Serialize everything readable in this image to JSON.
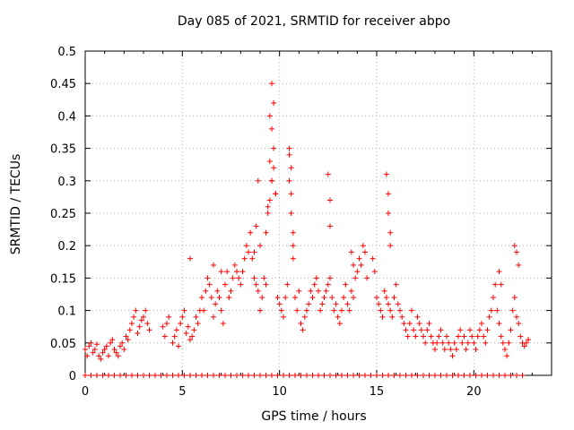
{
  "chart_data": {
    "type": "scatter",
    "title": "Day 085 of 2021, SRMTID for receiver abpo",
    "xlabel": "GPS time / hours",
    "ylabel": "SRMTID / TECUs",
    "xlim": [
      0,
      24
    ],
    "ylim": [
      0,
      0.5
    ],
    "xticks": [
      0,
      5,
      10,
      15,
      20
    ],
    "xtick_labels": [
      "0",
      "5",
      "10",
      "15",
      "20"
    ],
    "yticks": [
      0,
      0.05,
      0.1,
      0.15,
      0.2,
      0.25,
      0.3,
      0.35,
      0.4,
      0.45,
      0.5
    ],
    "ytick_labels": [
      "0",
      "0.05",
      "0.1",
      "0.15",
      "0.2",
      "0.25",
      "0.3",
      "0.35",
      "0.4",
      "0.45",
      "0.5"
    ],
    "grid": true,
    "marker_color": "#ff0000",
    "series": [
      {
        "name": "SRMTID",
        "marker": "plus",
        "x": [
          0.0,
          0.1,
          0.2,
          0.3,
          0.4,
          0.5,
          0.6,
          0.7,
          0.8,
          0.9,
          1.0,
          1.1,
          1.2,
          1.3,
          1.4,
          1.5,
          1.6,
          1.7,
          1.8,
          1.9,
          2.0,
          2.1,
          2.2,
          2.3,
          2.4,
          2.5,
          2.6,
          2.7,
          2.8,
          2.9,
          3.0,
          3.1,
          3.2,
          3.3,
          4.0,
          4.1,
          4.2,
          4.3,
          4.5,
          4.6,
          4.7,
          4.8,
          4.9,
          5.0,
          5.1,
          5.2,
          5.3,
          5.4,
          5.5,
          5.6,
          5.7,
          5.8,
          5.9,
          6.0,
          6.1,
          6.2,
          6.3,
          6.4,
          6.5,
          6.6,
          6.7,
          6.8,
          6.9,
          7.0,
          7.1,
          7.2,
          7.3,
          7.4,
          7.5,
          7.6,
          7.7,
          7.8,
          7.9,
          8.0,
          8.1,
          8.2,
          8.3,
          8.4,
          8.5,
          8.6,
          8.7,
          8.8,
          8.9,
          9.0,
          9.1,
          9.2,
          9.3,
          9.4,
          9.5,
          9.6,
          9.7,
          9.8,
          9.9,
          10.0,
          10.1,
          10.2,
          10.3,
          10.4,
          10.5,
          10.6,
          10.7,
          10.8,
          10.9,
          11.0,
          11.1,
          11.2,
          11.3,
          11.4,
          11.5,
          11.6,
          11.7,
          11.8,
          11.9,
          12.0,
          12.1,
          12.2,
          12.3,
          12.4,
          12.5,
          12.6,
          12.7,
          12.8,
          12.9,
          13.0,
          13.1,
          13.2,
          13.3,
          13.4,
          13.5,
          13.6,
          13.7,
          13.8,
          13.9,
          14.0,
          14.1,
          14.2,
          14.3,
          14.4,
          14.5,
          15.0,
          15.1,
          15.2,
          15.3,
          15.4,
          15.5,
          15.6,
          15.7,
          15.8,
          15.9,
          16.0,
          16.1,
          16.2,
          16.3,
          16.4,
          16.5,
          16.6,
          16.7,
          16.8,
          16.9,
          17.0,
          17.1,
          17.2,
          17.3,
          17.4,
          17.5,
          17.6,
          17.7,
          17.8,
          17.9,
          18.0,
          18.1,
          18.2,
          18.3,
          18.4,
          18.5,
          18.6,
          18.7,
          18.8,
          18.9,
          19.0,
          19.1,
          19.2,
          19.3,
          19.4,
          19.5,
          19.6,
          19.7,
          19.8,
          19.9,
          20.0,
          20.1,
          20.2,
          20.3,
          20.4,
          20.5,
          20.6,
          20.7,
          20.8,
          20.9,
          21.0,
          21.1,
          21.2,
          21.3,
          21.4,
          21.5,
          21.6,
          21.7,
          21.8,
          21.9,
          22.0,
          22.1,
          22.2,
          22.3,
          22.4,
          22.5,
          22.6,
          22.7,
          22.8,
          0.0,
          0.3,
          0.6,
          0.9,
          1.2,
          1.5,
          1.8,
          2.1,
          2.4,
          2.7,
          3.0,
          3.3,
          3.6,
          3.9,
          4.2,
          4.5,
          4.8,
          5.1,
          5.4,
          5.7,
          6.0,
          6.3,
          6.6,
          6.9,
          7.2,
          7.5,
          7.8,
          8.1,
          8.4,
          8.7,
          9.0,
          9.3,
          9.6,
          9.9,
          10.2,
          10.5,
          10.8,
          11.1,
          11.4,
          11.7,
          12.0,
          12.3,
          12.6,
          12.9,
          13.2,
          13.5,
          13.8,
          14.1,
          14.4,
          14.7,
          15.0,
          15.3,
          15.6,
          15.9,
          16.2,
          16.5,
          16.8,
          17.1,
          17.4,
          17.7,
          18.0,
          18.3,
          18.6,
          18.9,
          19.2,
          19.5,
          19.8,
          20.1,
          20.4,
          20.7,
          21.0,
          21.3,
          21.6,
          21.9,
          22.2,
          22.5,
          9.3,
          9.4,
          9.5,
          9.5,
          9.6,
          9.6,
          9.6,
          9.7,
          9.7,
          9.8,
          8.7,
          8.8,
          8.9,
          9.0,
          10.5,
          10.5,
          10.6,
          10.6,
          10.7,
          10.7,
          12.5,
          12.6,
          12.6,
          15.5,
          15.6,
          15.6,
          15.7,
          15.7,
          13.7,
          13.8,
          14.8,
          14.9,
          21.3,
          21.4,
          22.1,
          22.2,
          22.3,
          5.4,
          6.6,
          7.0
        ],
        "y": [
          0.04,
          0.03,
          0.045,
          0.05,
          0.035,
          0.04,
          0.048,
          0.03,
          0.025,
          0.035,
          0.04,
          0.045,
          0.03,
          0.05,
          0.055,
          0.04,
          0.035,
          0.03,
          0.045,
          0.05,
          0.04,
          0.06,
          0.055,
          0.07,
          0.08,
          0.09,
          0.1,
          0.065,
          0.075,
          0.085,
          0.09,
          0.1,
          0.08,
          0.07,
          0.075,
          0.06,
          0.08,
          0.09,
          0.05,
          0.06,
          0.07,
          0.045,
          0.08,
          0.09,
          0.1,
          0.065,
          0.075,
          0.055,
          0.06,
          0.07,
          0.09,
          0.08,
          0.1,
          0.12,
          0.1,
          0.13,
          0.15,
          0.14,
          0.12,
          0.09,
          0.11,
          0.13,
          0.12,
          0.1,
          0.08,
          0.14,
          0.16,
          0.12,
          0.13,
          0.15,
          0.17,
          0.16,
          0.15,
          0.14,
          0.16,
          0.18,
          0.2,
          0.19,
          0.22,
          0.18,
          0.15,
          0.14,
          0.13,
          0.1,
          0.12,
          0.15,
          0.14,
          0.25,
          0.27,
          0.3,
          0.32,
          0.28,
          0.12,
          0.11,
          0.1,
          0.09,
          0.12,
          0.14,
          0.3,
          0.25,
          0.2,
          0.12,
          0.1,
          0.13,
          0.08,
          0.07,
          0.09,
          0.1,
          0.11,
          0.13,
          0.12,
          0.14,
          0.15,
          0.13,
          0.1,
          0.11,
          0.12,
          0.13,
          0.14,
          0.15,
          0.12,
          0.1,
          0.11,
          0.09,
          0.08,
          0.1,
          0.12,
          0.14,
          0.11,
          0.1,
          0.13,
          0.12,
          0.15,
          0.16,
          0.18,
          0.17,
          0.2,
          0.19,
          0.15,
          0.12,
          0.11,
          0.1,
          0.09,
          0.13,
          0.12,
          0.11,
          0.1,
          0.09,
          0.12,
          0.14,
          0.11,
          0.1,
          0.09,
          0.08,
          0.07,
          0.06,
          0.08,
          0.1,
          0.07,
          0.06,
          0.09,
          0.08,
          0.07,
          0.06,
          0.05,
          0.07,
          0.08,
          0.06,
          0.05,
          0.04,
          0.05,
          0.06,
          0.07,
          0.05,
          0.04,
          0.06,
          0.05,
          0.04,
          0.03,
          0.05,
          0.04,
          0.06,
          0.07,
          0.05,
          0.06,
          0.04,
          0.05,
          0.07,
          0.06,
          0.05,
          0.04,
          0.06,
          0.07,
          0.08,
          0.06,
          0.05,
          0.07,
          0.09,
          0.1,
          0.12,
          0.14,
          0.1,
          0.08,
          0.06,
          0.05,
          0.04,
          0.03,
          0.05,
          0.07,
          0.1,
          0.12,
          0.09,
          0.08,
          0.06,
          0.05,
          0.045,
          0.05,
          0.055,
          0.0,
          0.0,
          0.0,
          0.0,
          0.0,
          0.0,
          0.0,
          0.0,
          0.0,
          0.0,
          0.0,
          0.0,
          0.0,
          0.0,
          0.0,
          0.0,
          0.0,
          0.0,
          0.0,
          0.0,
          0.0,
          0.0,
          0.0,
          0.0,
          0.0,
          0.0,
          0.0,
          0.0,
          0.0,
          0.0,
          0.0,
          0.0,
          0.0,
          0.0,
          0.0,
          0.0,
          0.0,
          0.0,
          0.0,
          0.0,
          0.0,
          0.0,
          0.0,
          0.0,
          0.0,
          0.0,
          0.0,
          0.0,
          0.0,
          0.0,
          0.0,
          0.0,
          0.0,
          0.0,
          0.0,
          0.0,
          0.0,
          0.0,
          0.0,
          0.0,
          0.0,
          0.0,
          0.0,
          0.0,
          0.0,
          0.0,
          0.0,
          0.0,
          0.0,
          0.0,
          0.0,
          0.0,
          0.0,
          0.0,
          0.0,
          0.0,
          0.22,
          0.26,
          0.33,
          0.4,
          0.45,
          0.38,
          0.3,
          0.42,
          0.35,
          0.28,
          0.19,
          0.23,
          0.3,
          0.2,
          0.35,
          0.34,
          0.32,
          0.28,
          0.22,
          0.18,
          0.31,
          0.27,
          0.23,
          0.31,
          0.28,
          0.25,
          0.22,
          0.2,
          0.19,
          0.17,
          0.18,
          0.16,
          0.16,
          0.14,
          0.2,
          0.19,
          0.17,
          0.18,
          0.17,
          0.16
        ]
      }
    ]
  }
}
